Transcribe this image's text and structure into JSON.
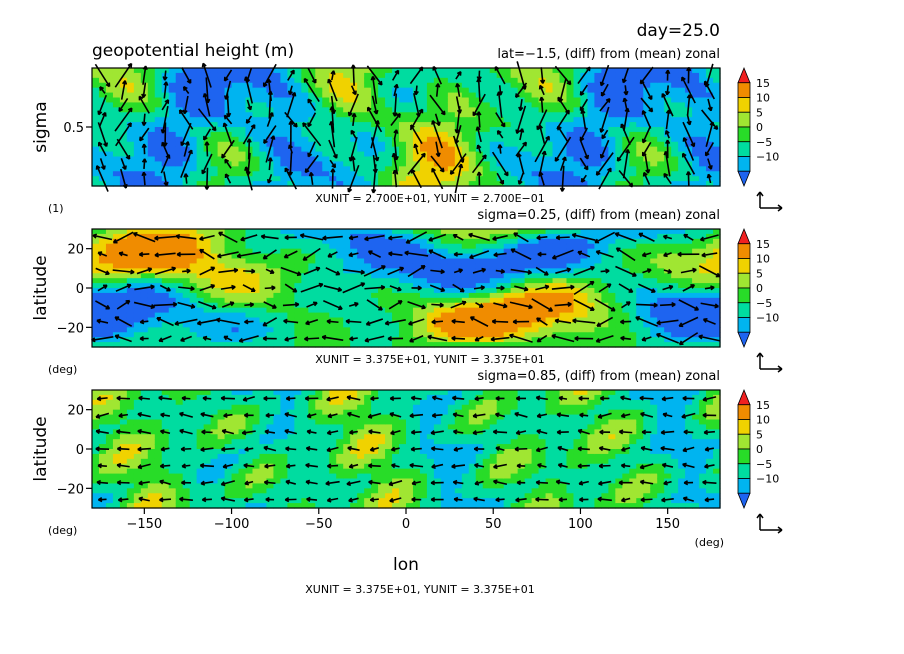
{
  "header": {
    "day_label": "day=25.0",
    "title": "geopotential height (m)"
  },
  "colorbar": {
    "levels": [
      15,
      10,
      5,
      0,
      -5,
      -10
    ],
    "labels": [
      "15",
      "10",
      "5",
      "0",
      "−5",
      "−10"
    ],
    "colors": [
      "#1e64f0",
      "#00b4f0",
      "#00dca0",
      "#28dc28",
      "#a0e632",
      "#f0d200",
      "#f08c00",
      "#f02020"
    ]
  },
  "chart_data": [
    {
      "type": "heatmap",
      "panel": "top",
      "title": "",
      "subtitle": "lat=−1.5, (diff) from (mean) zonal",
      "xlabel": "",
      "ylabel": "sigma",
      "yticks": [
        {
          "value": 0.5,
          "label": "0.5"
        }
      ],
      "yunit_label": "(1)",
      "ylim": [
        0.0,
        1.0
      ],
      "xlim": [
        -180,
        180
      ],
      "unit_footer": "XUNIT = 2.700E+01, YUNIT = 2.700E−01",
      "vectors": "wind arrows"
    },
    {
      "type": "heatmap",
      "panel": "middle",
      "subtitle": "sigma=0.25, (diff) from (mean) zonal",
      "xlabel": "",
      "ylabel": "latitude",
      "yticks": [
        {
          "value": 20,
          "label": "20"
        },
        {
          "value": 0,
          "label": "0"
        },
        {
          "value": -20,
          "label": "−20"
        }
      ],
      "yunit_label": "(deg)",
      "ylim": [
        -30,
        30
      ],
      "xlim": [
        -180,
        180
      ],
      "unit_footer": "XUNIT = 3.375E+01, YUNIT = 3.375E+01",
      "vectors": "wind arrows"
    },
    {
      "type": "heatmap",
      "panel": "bottom",
      "subtitle": "sigma=0.85, (diff) from (mean) zonal",
      "xlabel": "lon",
      "ylabel": "latitude",
      "yticks": [
        {
          "value": 20,
          "label": "20"
        },
        {
          "value": 0,
          "label": "0"
        },
        {
          "value": -20,
          "label": "−20"
        }
      ],
      "xticks": [
        {
          "value": -150,
          "label": "−150"
        },
        {
          "value": -100,
          "label": "−100"
        },
        {
          "value": -50,
          "label": "−50"
        },
        {
          "value": 0,
          "label": "0"
        },
        {
          "value": 50,
          "label": "50"
        },
        {
          "value": 100,
          "label": "100"
        },
        {
          "value": 150,
          "label": "150"
        }
      ],
      "yunit_label": "(deg)",
      "xunit_label": "(deg)",
      "ylim": [
        -30,
        30
      ],
      "xlim": [
        -180,
        180
      ],
      "unit_footer": "XUNIT = 3.375E+01, YUNIT = 3.375E+01",
      "vectors": "wind arrows"
    }
  ]
}
